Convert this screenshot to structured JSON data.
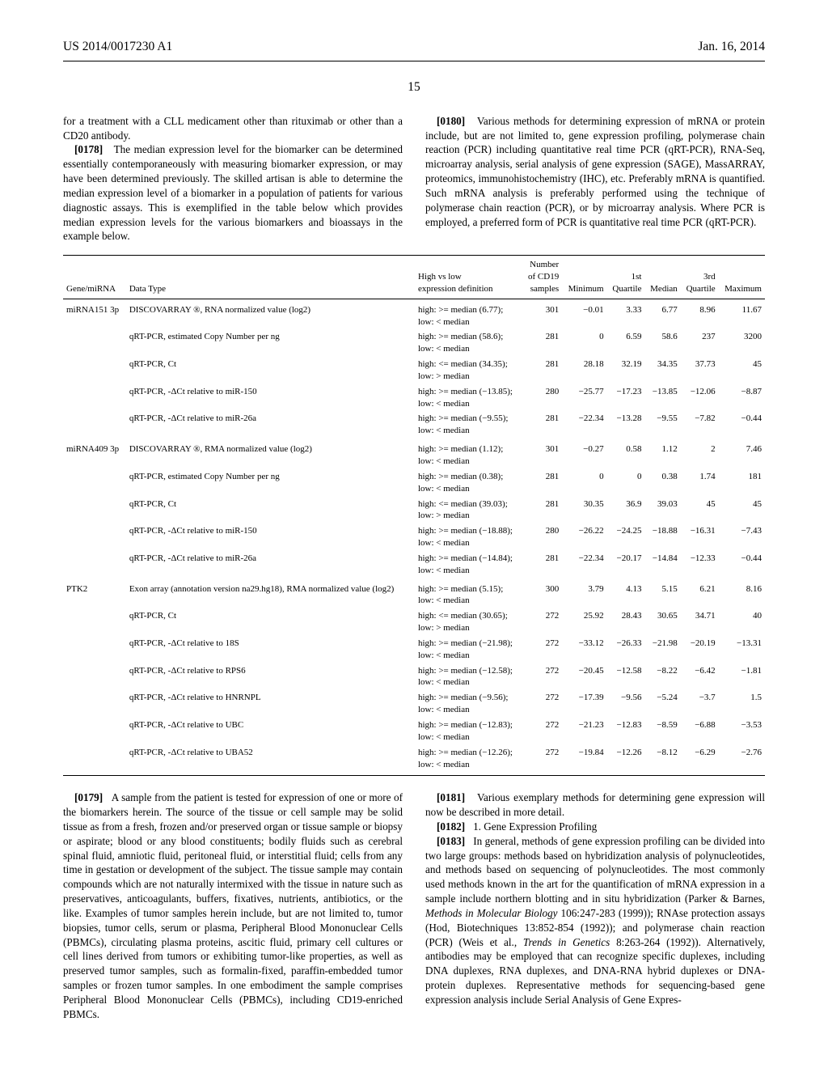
{
  "header": {
    "left": "US 2014/0017230 A1",
    "right": "Jan. 16, 2014",
    "page": "15"
  },
  "col_left": {
    "p1": "for a treatment with a CLL medicament other than rituximab or other than a CD20 antibody.",
    "p2_num": "[0178]",
    "p2": "The median expression level for the biomarker can be determined essentially contemporaneously with measuring biomarker expression, or may have been determined previously. The skilled artisan is able to determine the median expression level of a biomarker in a population of patients for various diagnostic assays. This is exemplified in the table below which provides median expression levels for the various biomarkers and bioassays in the example below."
  },
  "col_right_top": {
    "p1_num": "[0180]",
    "p1": "Various methods for determining expression of mRNA or protein include, but are not limited to, gene expression profiling, polymerase chain reaction (PCR) including quantitative real time PCR (qRT-PCR), RNA-Seq, microarray analysis, serial analysis of gene expression (SAGE), MassARRAY, proteomics, immunohistochemistry (IHC), etc. Preferably mRNA is quantified. Such mRNA analysis is preferably performed using the technique of polymerase chain reaction (PCR), or by microarray analysis. Where PCR is employed, a preferred form of PCR is quantitative real time PCR (qRT-PCR)."
  },
  "table": {
    "headers": [
      "Gene/miRNA",
      "Data Type",
      "High vs low\nexpression definition",
      "Number\nof CD19\nsamples",
      "Minimum",
      "1st\nQuartile",
      "Median",
      "3rd\nQuartile",
      "Maximum"
    ],
    "rows": [
      {
        "g": "miRNA151 3p",
        "dt": "DISCOVARRAY ®, RNA normalized value (log2)",
        "def": "high: >= median (6.77);\nlow: < median",
        "n": "301",
        "min": "−0.01",
        "q1": "3.33",
        "med": "6.77",
        "q3": "8.96",
        "max": "11.67",
        "section": true
      },
      {
        "g": "",
        "dt": "qRT-PCR, estimated Copy Number per ng",
        "def": "high: >= median (58.6);\nlow: < median",
        "n": "281",
        "min": "0",
        "q1": "6.59",
        "med": "58.6",
        "q3": "237",
        "max": "3200"
      },
      {
        "g": "",
        "dt": "qRT-PCR, Ct",
        "def": "high: <= median (34.35);\nlow: > median",
        "n": "281",
        "min": "28.18",
        "q1": "32.19",
        "med": "34.35",
        "q3": "37.73",
        "max": "45"
      },
      {
        "g": "",
        "dt": "qRT-PCR, -ΔCt relative to miR-150",
        "def": "high: >= median (−13.85);\nlow: < median",
        "n": "280",
        "min": "−25.77",
        "q1": "−17.23",
        "med": "−13.85",
        "q3": "−12.06",
        "max": "−8.87"
      },
      {
        "g": "",
        "dt": "qRT-PCR, -ΔCt relative to miR-26a",
        "def": "high: >= median (−9.55);\nlow: < median",
        "n": "281",
        "min": "−22.34",
        "q1": "−13.28",
        "med": "−9.55",
        "q3": "−7.82",
        "max": "−0.44"
      },
      {
        "g": "miRNA409 3p",
        "dt": "DISCOVARRAY ®, RMA normalized value (log2)",
        "def": "high: >= median (1.12);\nlow: < median",
        "n": "301",
        "min": "−0.27",
        "q1": "0.58",
        "med": "1.12",
        "q3": "2",
        "max": "7.46",
        "section": true
      },
      {
        "g": "",
        "dt": "qRT-PCR, estimated Copy Number per ng",
        "def": "high: >= median (0.38);\nlow: < median",
        "n": "281",
        "min": "0",
        "q1": "0",
        "med": "0.38",
        "q3": "1.74",
        "max": "181"
      },
      {
        "g": "",
        "dt": "qRT-PCR, Ct",
        "def": "high: <= median (39.03);\nlow: > median",
        "n": "281",
        "min": "30.35",
        "q1": "36.9",
        "med": "39.03",
        "q3": "45",
        "max": "45"
      },
      {
        "g": "",
        "dt": "qRT-PCR, -ΔCt relative to miR-150",
        "def": "high: >= median (−18.88);\nlow: < median",
        "n": "280",
        "min": "−26.22",
        "q1": "−24.25",
        "med": "−18.88",
        "q3": "−16.31",
        "max": "−7.43"
      },
      {
        "g": "",
        "dt": "qRT-PCR, -ΔCt relative to miR-26a",
        "def": "high: >= median (−14.84);\nlow: < median",
        "n": "281",
        "min": "−22.34",
        "q1": "−20.17",
        "med": "−14.84",
        "q3": "−12.33",
        "max": "−0.44"
      },
      {
        "g": "PTK2",
        "dt": "Exon array (annotation version na29.hg18), RMA normalized value (log2)",
        "def": "high: >= median (5.15);\nlow: < median",
        "n": "300",
        "min": "3.79",
        "q1": "4.13",
        "med": "5.15",
        "q3": "6.21",
        "max": "8.16",
        "section": true
      },
      {
        "g": "",
        "dt": "qRT-PCR, Ct",
        "def": "high: <= median (30.65);\nlow: > median",
        "n": "272",
        "min": "25.92",
        "q1": "28.43",
        "med": "30.65",
        "q3": "34.71",
        "max": "40"
      },
      {
        "g": "",
        "dt": "qRT-PCR, -ΔCt relative to 18S",
        "def": "high: >= median (−21.98);\nlow: < median",
        "n": "272",
        "min": "−33.12",
        "q1": "−26.33",
        "med": "−21.98",
        "q3": "−20.19",
        "max": "−13.31"
      },
      {
        "g": "",
        "dt": "qRT-PCR, -ΔCt relative to RPS6",
        "def": "high: >= median (−12.58);\nlow: < median",
        "n": "272",
        "min": "−20.45",
        "q1": "−12.58",
        "med": "−8.22",
        "q3": "−6.42",
        "max": "−1.81"
      },
      {
        "g": "",
        "dt": "qRT-PCR, -ΔCt relative to HNRNPL",
        "def": "high: >= median (−9.56);\nlow: < median",
        "n": "272",
        "min": "−17.39",
        "q1": "−9.56",
        "med": "−5.24",
        "q3": "−3.7",
        "max": "1.5"
      },
      {
        "g": "",
        "dt": "qRT-PCR, -ΔCt relative to UBC",
        "def": "high: >= median (−12.83);\nlow: < median",
        "n": "272",
        "min": "−21.23",
        "q1": "−12.83",
        "med": "−8.59",
        "q3": "−6.88",
        "max": "−3.53"
      },
      {
        "g": "",
        "dt": "qRT-PCR, -ΔCt relative to UBA52",
        "def": "high: >= median (−12.26);\nlow: < median",
        "n": "272",
        "min": "−19.84",
        "q1": "−12.26",
        "med": "−8.12",
        "q3": "−6.29",
        "max": "−2.76",
        "last": true
      }
    ]
  },
  "col_left_bottom": {
    "p1_num": "[0179]",
    "p1": "A sample from the patient is tested for expression of one or more of the biomarkers herein. The source of the tissue or cell sample may be solid tissue as from a fresh, frozen and/or preserved organ or tissue sample or biopsy or aspirate; blood or any blood constituents; bodily fluids such as cerebral spinal fluid, amniotic fluid, peritoneal fluid, or interstitial fluid; cells from any time in gestation or development of the subject. The tissue sample may contain compounds which are not naturally intermixed with the tissue in nature such as preservatives, anticoagulants, buffers, fixatives, nutrients, antibiotics, or the like. Examples of tumor samples herein include, but are not limited to, tumor biopsies, tumor cells, serum or plasma, Peripheral Blood Mononuclear Cells (PBMCs), circulating plasma proteins, ascitic fluid, primary cell cultures or cell lines derived from tumors or exhibiting tumor-like properties, as well as preserved tumor samples, such as formalin-fixed, paraffin-embedded tumor samples or frozen tumor samples. In one embodiment the sample comprises Peripheral Blood Mononuclear Cells (PBMCs), including CD19-enriched PBMCs."
  },
  "col_right_bottom": {
    "p1_num": "[0181]",
    "p1": "Various exemplary methods for determining gene expression will now be described in more detail.",
    "p2_num": "[0182]",
    "p2": "1. Gene Expression Profiling",
    "p3_num": "[0183]",
    "p3a": "In general, methods of gene expression profiling can be divided into two large groups: methods based on hybridization analysis of polynucleotides, and methods based on sequencing of polynucleotides. The most commonly used methods known in the art for the quantification of mRNA expression in a sample include northern blotting and in situ hybridization (Parker & Barnes, ",
    "p3_ital1": "Methods in Molecular Biology",
    "p3b": " 106:247-283 (1999)); RNAse protection assays (Hod, Biotechniques 13:852-854 (1992)); and polymerase chain reaction (PCR) (Weis et al., ",
    "p3_ital2": "Trends in Genetics",
    "p3c": " 8:263-264 (1992)). Alternatively, antibodies may be employed that can recognize specific duplexes, including DNA duplexes, RNA duplexes, and DNA-RNA hybrid duplexes or DNA-protein duplexes. Representative methods for sequencing-based gene expression analysis include Serial Analysis of Gene Expres-"
  }
}
